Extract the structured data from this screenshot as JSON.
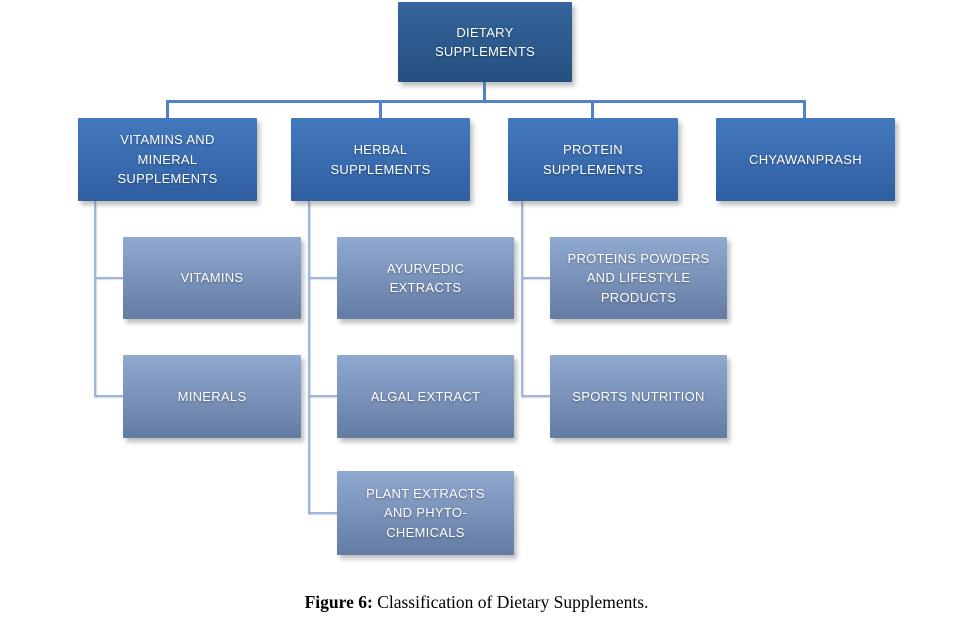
{
  "diagram": {
    "title": "Classification of Dietary Supplements",
    "root": {
      "label": "DIETARY\nSUPPLEMENTS"
    },
    "branches": [
      {
        "label": "VITAMINS AND\nMINERAL\nSUPPLEMENTS",
        "children": [
          {
            "label": "VITAMINS"
          },
          {
            "label": "MINERALS"
          }
        ]
      },
      {
        "label": "HERBAL\nSUPPLEMENTS",
        "children": [
          {
            "label": "AYURVEDIC\nEXTRACTS"
          },
          {
            "label": "ALGAL EXTRACT"
          },
          {
            "label": "PLANT EXTRACTS\nAND PHYTO-\nCHEMICALS"
          }
        ]
      },
      {
        "label": "PROTEIN\nSUPPLEMENTS",
        "children": [
          {
            "label": "PROTEINS POWDERS\nAND LIFESTYLE\nPRODUCTS"
          },
          {
            "label": "SPORTS NUTRITION"
          }
        ]
      },
      {
        "label": "CHYAWANPRASH",
        "children": []
      }
    ],
    "colors": {
      "level1_fill_top": "#34659d",
      "level1_fill_bottom": "#26507f",
      "level2_fill_top": "#4379bd",
      "level2_fill_bottom": "#305fa1",
      "level3_fill_top": "#90a9d0",
      "level3_fill_bottom": "#647ca4",
      "connector_main": "#5082c8",
      "connector_light": "#9fb5db",
      "text": "#ffffff",
      "background": "#ffffff"
    }
  },
  "caption": {
    "prefix": "Figure 6:",
    "text": " Classification of Dietary Supplements."
  }
}
